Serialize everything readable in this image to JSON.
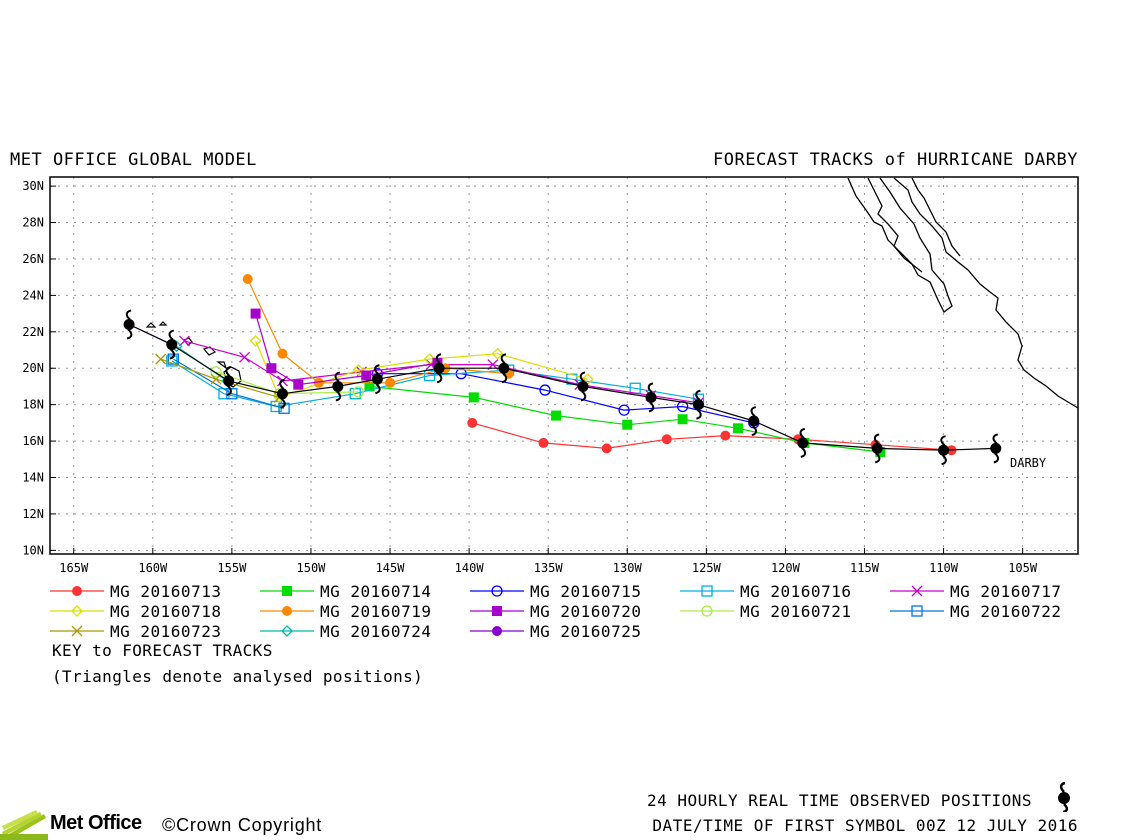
{
  "header": {
    "left": "MET OFFICE GLOBAL MODEL",
    "right": "FORECAST TRACKS of HURRICANE DARBY"
  },
  "chart_data": {
    "type": "map",
    "lon_range": [
      -166.5,
      -101.5
    ],
    "lat_range": [
      9.8,
      30.5
    ],
    "lat_ticks": [
      "30N",
      "28N",
      "26N",
      "24N",
      "22N",
      "20N",
      "18N",
      "16N",
      "14N",
      "12N",
      "10N"
    ],
    "lon_ticks": [
      "165W",
      "160W",
      "155W",
      "150W",
      "145W",
      "140W",
      "135W",
      "130W",
      "125W",
      "120W",
      "115W",
      "110W",
      "105W"
    ],
    "storm_label": "DARBY",
    "observed_track": [
      [
        -106.7,
        15.6
      ],
      [
        -110.0,
        15.5
      ],
      [
        -114.2,
        15.6
      ],
      [
        -118.9,
        15.9
      ],
      [
        -122.0,
        17.1
      ],
      [
        -125.5,
        18.0
      ],
      [
        -128.5,
        18.4
      ],
      [
        -132.8,
        19.0
      ],
      [
        -137.8,
        20.0
      ],
      [
        -141.9,
        20.0
      ],
      [
        -145.8,
        19.4
      ],
      [
        -148.3,
        19.0
      ],
      [
        -151.8,
        18.6
      ],
      [
        -155.2,
        19.3
      ],
      [
        -158.8,
        21.3
      ],
      [
        -161.5,
        22.4
      ]
    ],
    "forecasts": [
      {
        "name": "MG 20160713",
        "color": "#ff3333",
        "marker": "filled-circle",
        "points": [
          [
            -109.5,
            15.5
          ],
          [
            -114.3,
            15.8
          ],
          [
            -119.2,
            16.1
          ],
          [
            -123.8,
            16.3
          ],
          [
            -127.5,
            16.1
          ],
          [
            -131.3,
            15.6
          ],
          [
            -135.3,
            15.9
          ],
          [
            -139.8,
            17.0
          ]
        ]
      },
      {
        "name": "MG 20160714",
        "color": "#00dd00",
        "marker": "filled-square",
        "points": [
          [
            -114.0,
            15.4
          ],
          [
            -118.8,
            15.9
          ],
          [
            -123.0,
            16.7
          ],
          [
            -126.5,
            17.2
          ],
          [
            -130.0,
            16.9
          ],
          [
            -134.5,
            17.4
          ],
          [
            -139.7,
            18.4
          ],
          [
            -146.3,
            19.0
          ]
        ]
      },
      {
        "name": "MG 20160715",
        "color": "#0000ff",
        "marker": "open-circle",
        "points": [
          [
            -122.0,
            17.0
          ],
          [
            -126.5,
            17.9
          ],
          [
            -130.2,
            17.7
          ],
          [
            -135.2,
            18.8
          ],
          [
            -140.5,
            19.7
          ],
          [
            -145.8,
            19.7
          ]
        ]
      },
      {
        "name": "MG 20160716",
        "color": "#00b0e0",
        "marker": "open-square",
        "points": [
          [
            -125.5,
            18.3
          ],
          [
            -129.5,
            18.9
          ],
          [
            -133.5,
            19.4
          ],
          [
            -137.5,
            19.9
          ],
          [
            -142.5,
            19.6
          ],
          [
            -147.2,
            18.6
          ],
          [
            -152.2,
            17.9
          ],
          [
            -155.5,
            18.6
          ],
          [
            -158.8,
            20.4
          ]
        ]
      },
      {
        "name": "MG 20160717",
        "color": "#cc00cc",
        "marker": "cross",
        "points": [
          [
            -125.5,
            18.1
          ],
          [
            -128.5,
            18.5
          ],
          [
            -133.0,
            19.1
          ],
          [
            -138.5,
            20.2
          ],
          [
            -142.4,
            20.2
          ],
          [
            -146.8,
            19.8
          ],
          [
            -151.8,
            19.3
          ],
          [
            -154.2,
            20.6
          ],
          [
            -158.0,
            21.5
          ]
        ]
      },
      {
        "name": "MG 20160718",
        "color": "#dddd00",
        "marker": "open-diamond",
        "points": [
          [
            -132.5,
            19.4
          ],
          [
            -138.2,
            20.8
          ],
          [
            -142.5,
            20.5
          ],
          [
            -147.0,
            19.9
          ],
          [
            -152.0,
            18.4
          ],
          [
            -153.5,
            21.5
          ]
        ]
      },
      {
        "name": "MG 20160719",
        "color": "#ff8800",
        "marker": "filled-circle",
        "points": [
          [
            -137.5,
            19.7
          ],
          [
            -141.5,
            20.0
          ],
          [
            -145.0,
            19.2
          ],
          [
            -149.5,
            19.2
          ],
          [
            -151.8,
            20.8
          ],
          [
            -154.0,
            24.9
          ]
        ]
      },
      {
        "name": "MG 20160720",
        "color": "#aa00cc",
        "marker": "filled-square",
        "points": [
          [
            -142.0,
            20.3
          ],
          [
            -146.5,
            19.6
          ],
          [
            -150.8,
            19.1
          ],
          [
            -152.5,
            20.0
          ],
          [
            -153.5,
            23.0
          ]
        ]
      },
      {
        "name": "MG 20160721",
        "color": "#aaee44",
        "marker": "open-circle",
        "points": [
          [
            -147.0,
            18.7
          ],
          [
            -152.0,
            18.6
          ],
          [
            -156.0,
            19.8
          ]
        ]
      },
      {
        "name": "MG 20160722",
        "color": "#0077dd",
        "marker": "open-square",
        "points": [
          [
            -151.7,
            17.8
          ],
          [
            -155.0,
            18.6
          ],
          [
            -158.7,
            20.5
          ]
        ]
      },
      {
        "name": "MG 20160723",
        "color": "#aa9900",
        "marker": "cross",
        "points": [
          [
            -152.0,
            18.4
          ],
          [
            -156.0,
            19.4
          ],
          [
            -159.5,
            20.5
          ]
        ]
      },
      {
        "name": "MG 20160724",
        "color": "#00bbaa",
        "marker": "open-diamond",
        "points": [
          [
            -155.3,
            19.3
          ],
          [
            -158.5,
            21.2
          ]
        ]
      },
      {
        "name": "MG 20160725",
        "color": "#8800cc",
        "marker": "filled-circle",
        "points": [
          [
            -158.8,
            21.3
          ],
          [
            -161.5,
            22.4
          ]
        ]
      }
    ]
  },
  "legend": {
    "key_title": "KEY to FORECAST TRACKS",
    "key_sub": "(Triangles denote analysed positions)"
  },
  "footer": {
    "line1": "24 HOURLY REAL TIME OBSERVED POSITIONS",
    "line2": "DATE/TIME OF FIRST SYMBOL 00Z 12 JULY 2016",
    "brand": "Met Office",
    "copyright": "©Crown Copyright"
  }
}
